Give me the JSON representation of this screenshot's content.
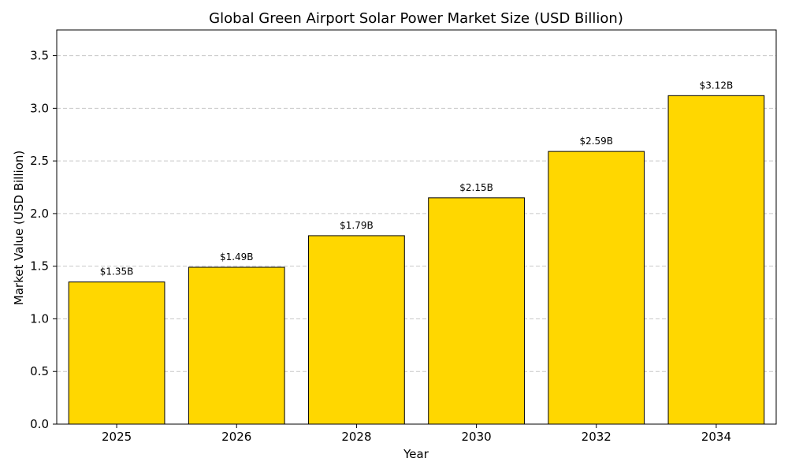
{
  "chart_data": {
    "type": "bar",
    "title": "Global Green Airport Solar Power Market Size (USD Billion)",
    "xlabel": "Year",
    "ylabel": "Market Value (USD Billion)",
    "categories": [
      "2025",
      "2026",
      "2028",
      "2030",
      "2032",
      "2034"
    ],
    "values": [
      1.35,
      1.49,
      1.79,
      2.15,
      2.59,
      3.12
    ],
    "data_labels": [
      "$1.35B",
      "$1.49B",
      "$1.79B",
      "$2.15B",
      "$2.59B",
      "$3.12B"
    ],
    "ylim": [
      0,
      3.744
    ],
    "yticks": [
      0.0,
      0.5,
      1.0,
      1.5,
      2.0,
      2.5,
      3.0,
      3.5
    ],
    "ytick_labels": [
      "0.0",
      "0.5",
      "1.0",
      "1.5",
      "2.0",
      "2.5",
      "3.0",
      "3.5"
    ],
    "grid": "y-dashed",
    "bar_color": "#FFD700",
    "bar_edge_color": "#000000",
    "grid_color": "#c8c8c8"
  }
}
